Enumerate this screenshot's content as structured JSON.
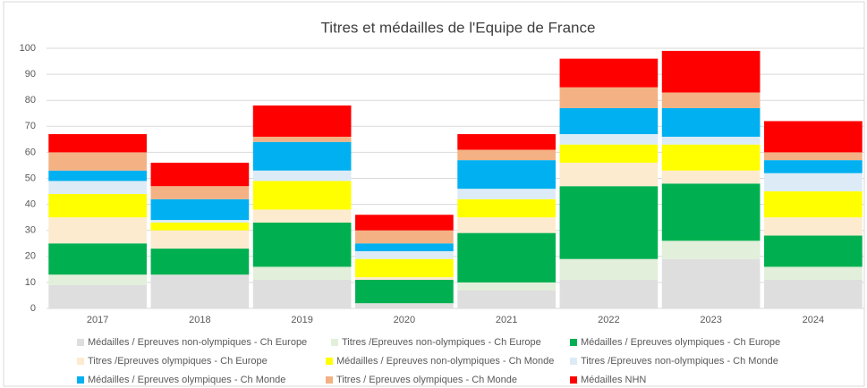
{
  "chart_data": {
    "type": "stacked_bar",
    "title": "Titres et médailles de l'Equipe de France",
    "categories": [
      "2017",
      "2018",
      "2019",
      "2020",
      "2021",
      "2022",
      "2023",
      "2024"
    ],
    "series": [
      {
        "name": "Médailles / Epreuves non-olympiques - Ch Europe",
        "color": "#dedede",
        "values": [
          9,
          13,
          11,
          2,
          7,
          11,
          19,
          11
        ]
      },
      {
        "name": "Titres /Epreuves non-olympiques - Ch Europe",
        "color": "#e2efda",
        "values": [
          4,
          0,
          5,
          0,
          3,
          8,
          7,
          5
        ]
      },
      {
        "name": "Médailles / Epreuves olympiques - Ch Europe",
        "color": "#00b050",
        "values": [
          12,
          10,
          17,
          9,
          19,
          28,
          22,
          12
        ]
      },
      {
        "name": "Titres /Epreuves olympiques - Ch Europe",
        "color": "#fdebd0",
        "values": [
          10,
          7,
          5,
          1,
          6,
          9,
          5,
          7
        ]
      },
      {
        "name": "Médailles / Epreuves non-olympiques - Ch Monde",
        "color": "#ffff00",
        "values": [
          9,
          3,
          11,
          7,
          7,
          7,
          10,
          10
        ]
      },
      {
        "name": "Titres /Epreuves non-olympiques - Ch Monde",
        "color": "#ddebf7",
        "values": [
          5,
          1,
          4,
          3,
          4,
          4,
          3,
          7
        ]
      },
      {
        "name": "Médailles / Epreuves olympiques - Ch Monde",
        "color": "#00b0f0",
        "values": [
          4,
          8,
          11,
          3,
          11,
          10,
          11,
          5
        ]
      },
      {
        "name": "Titres / Epreuves olympiques - Ch Monde",
        "color": "#f4b183",
        "values": [
          7,
          5,
          2,
          5,
          4,
          8,
          6,
          3
        ]
      },
      {
        "name": "Médailles NHN",
        "color": "#ff0000",
        "values": [
          7,
          9,
          12,
          6,
          6,
          11,
          16,
          12
        ]
      }
    ],
    "ylim": [
      0,
      100
    ],
    "yticks": [
      0,
      10,
      20,
      30,
      40,
      50,
      60,
      70,
      80,
      90,
      100
    ],
    "grid": true
  }
}
